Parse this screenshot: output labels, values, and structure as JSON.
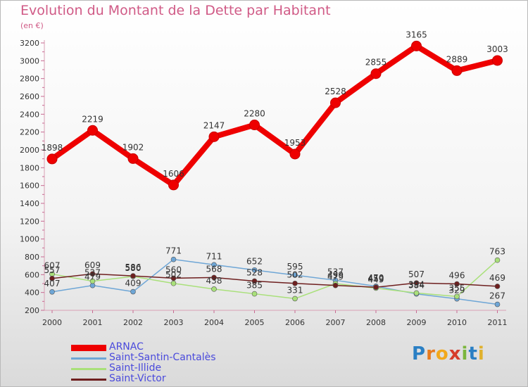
{
  "title": "Evolution du Montant de la Dette par Habitant",
  "subtitle": "(en €)",
  "logo": [
    "P",
    "r",
    "o",
    "x",
    "i",
    "t",
    "i"
  ],
  "chart_data": {
    "type": "line",
    "x": [
      "2000",
      "2001",
      "2002",
      "2003",
      "2004",
      "2005",
      "2006",
      "2007",
      "2008",
      "2009",
      "2010",
      "2011"
    ],
    "ylim": [
      200,
      3200
    ],
    "yticks": [
      200,
      400,
      600,
      800,
      1000,
      1200,
      1400,
      1600,
      1800,
      2000,
      2200,
      2400,
      2600,
      2800,
      3000,
      3200
    ],
    "grid": false,
    "legend": "bottom-left",
    "series": [
      {
        "name": "ARNAC",
        "color": "#ee0000",
        "values": [
          1898,
          2219,
          1902,
          1606,
          2147,
          2280,
          1953,
          2528,
          2855,
          3165,
          2889,
          3003
        ],
        "labels": [
          "1898",
          "2219",
          "1902",
          "1606",
          "2147",
          "2280",
          "1953",
          "2528",
          "2855",
          "3165",
          "2889",
          "3003"
        ]
      },
      {
        "name": "Saint-Santin-Cantalès",
        "color": "#6ea6d6",
        "values": [
          407,
          479,
          409,
          771,
          711,
          652,
          595,
          537,
          470,
          384,
          329,
          267
        ],
        "labels": [
          "407",
          "479",
          "409",
          "771",
          "711",
          "652",
          "595",
          "537",
          "470",
          "384",
          "329",
          "267"
        ]
      },
      {
        "name": "Saint-Illide",
        "color": "#a9e07a",
        "values": [
          607,
          527,
          580,
          502,
          438,
          385,
          331,
          499,
          449,
          394,
          355,
          763
        ],
        "labels": [
          "607",
          "527",
          "580",
          "502",
          "438",
          "385",
          "331",
          "499",
          "449",
          "394",
          "355",
          "763"
        ]
      },
      {
        "name": "Saint-Victor",
        "color": "#6e1f1f",
        "values": [
          557,
          609,
          586,
          560,
          568,
          528,
          502,
          479,
          459,
          507,
          496,
          469
        ],
        "labels": [
          "557",
          "609",
          "586",
          "560",
          "568",
          "528",
          "502",
          "479",
          "459",
          "507",
          "496",
          "469"
        ]
      }
    ]
  }
}
